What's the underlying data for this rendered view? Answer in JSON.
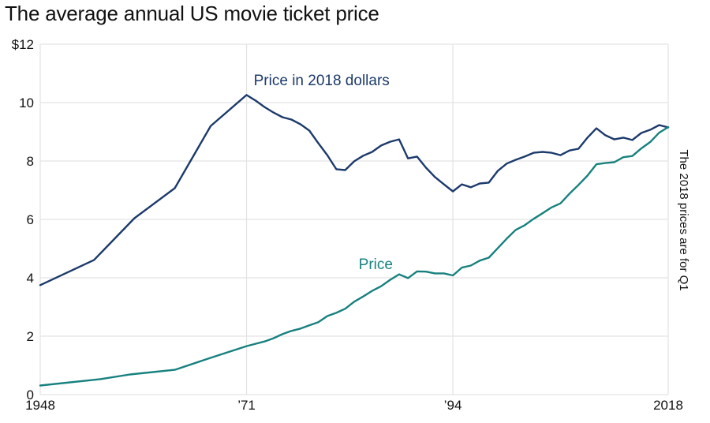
{
  "chart_data": {
    "type": "line",
    "title": "The average annual US movie ticket price",
    "xlabel": "",
    "ylabel": "",
    "xlim": [
      1948,
      2018
    ],
    "ylim": [
      0,
      12
    ],
    "grid": true,
    "y_ticks": [
      {
        "value": 0,
        "label": "0"
      },
      {
        "value": 2,
        "label": "2"
      },
      {
        "value": 4,
        "label": "4"
      },
      {
        "value": 6,
        "label": "6"
      },
      {
        "value": 8,
        "label": "8"
      },
      {
        "value": 10,
        "label": "10"
      },
      {
        "value": 12,
        "label": "$12"
      }
    ],
    "x_ticks": [
      {
        "value": 1948,
        "label": "1948"
      },
      {
        "value": 1971,
        "label": "’71"
      },
      {
        "value": 1994,
        "label": "’94"
      },
      {
        "value": 2018,
        "label": "2018"
      }
    ],
    "note": "The 2018 prices are for Q1",
    "series": [
      {
        "name": "Price in 2018 dollars",
        "color": "#1c3a6b",
        "points": [
          [
            1948,
            3.75
          ],
          [
            1954,
            4.61
          ],
          [
            1958.5,
            6.04
          ],
          [
            1963,
            7.07
          ],
          [
            1967,
            9.2
          ],
          [
            1971,
            10.26
          ],
          [
            1972,
            10.07
          ],
          [
            1973,
            9.85
          ],
          [
            1974,
            9.66
          ],
          [
            1975,
            9.5
          ],
          [
            1976,
            9.42
          ],
          [
            1977,
            9.26
          ],
          [
            1978,
            9.04
          ],
          [
            1979,
            8.61
          ],
          [
            1980,
            8.2
          ],
          [
            1981,
            7.72
          ],
          [
            1982,
            7.69
          ],
          [
            1983,
            7.99
          ],
          [
            1984,
            8.18
          ],
          [
            1985,
            8.31
          ],
          [
            1986,
            8.53
          ],
          [
            1987,
            8.66
          ],
          [
            1988,
            8.74
          ],
          [
            1989,
            8.09
          ],
          [
            1990,
            8.15
          ],
          [
            1991,
            7.77
          ],
          [
            1992,
            7.45
          ],
          [
            1993,
            7.2
          ],
          [
            1994,
            6.96
          ],
          [
            1995,
            7.2
          ],
          [
            1996,
            7.1
          ],
          [
            1997,
            7.23
          ],
          [
            1998,
            7.26
          ],
          [
            1999,
            7.66
          ],
          [
            2000,
            7.91
          ],
          [
            2001,
            8.04
          ],
          [
            2002,
            8.15
          ],
          [
            2003,
            8.28
          ],
          [
            2004,
            8.31
          ],
          [
            2005,
            8.28
          ],
          [
            2006,
            8.2
          ],
          [
            2007,
            8.36
          ],
          [
            2008,
            8.42
          ],
          [
            2009,
            8.8
          ],
          [
            2010,
            9.12
          ],
          [
            2011,
            8.88
          ],
          [
            2012,
            8.74
          ],
          [
            2013,
            8.8
          ],
          [
            2014,
            8.72
          ],
          [
            2015,
            8.96
          ],
          [
            2016,
            9.07
          ],
          [
            2017,
            9.23
          ],
          [
            2018,
            9.15
          ]
        ]
      },
      {
        "name": "Price",
        "color": "#17817f",
        "points": [
          [
            1948,
            0.31
          ],
          [
            1954.7,
            0.53
          ],
          [
            1958,
            0.69
          ],
          [
            1963,
            0.85
          ],
          [
            1967,
            1.26
          ],
          [
            1971,
            1.66
          ],
          [
            1972,
            1.74
          ],
          [
            1973,
            1.82
          ],
          [
            1974,
            1.93
          ],
          [
            1975,
            2.07
          ],
          [
            1976,
            2.18
          ],
          [
            1977,
            2.26
          ],
          [
            1978,
            2.37
          ],
          [
            1979,
            2.48
          ],
          [
            1980,
            2.69
          ],
          [
            1981,
            2.8
          ],
          [
            1982,
            2.94
          ],
          [
            1983,
            3.18
          ],
          [
            1984,
            3.36
          ],
          [
            1985,
            3.55
          ],
          [
            1986,
            3.71
          ],
          [
            1987,
            3.93
          ],
          [
            1988,
            4.12
          ],
          [
            1989,
            3.99
          ],
          [
            1990,
            4.22
          ],
          [
            1991,
            4.21
          ],
          [
            1992,
            4.15
          ],
          [
            1993,
            4.15
          ],
          [
            1994,
            4.08
          ],
          [
            1995,
            4.35
          ],
          [
            1996,
            4.42
          ],
          [
            1997,
            4.59
          ],
          [
            1998,
            4.69
          ],
          [
            1999,
            5.01
          ],
          [
            2000,
            5.34
          ],
          [
            2001,
            5.64
          ],
          [
            2002,
            5.8
          ],
          [
            2003,
            6.02
          ],
          [
            2004,
            6.21
          ],
          [
            2005,
            6.41
          ],
          [
            2006,
            6.55
          ],
          [
            2007,
            6.88
          ],
          [
            2008,
            7.18
          ],
          [
            2009,
            7.5
          ],
          [
            2010,
            7.89
          ],
          [
            2011,
            7.93
          ],
          [
            2012,
            7.96
          ],
          [
            2013,
            8.13
          ],
          [
            2014,
            8.17
          ],
          [
            2015,
            8.43
          ],
          [
            2016,
            8.65
          ],
          [
            2017,
            8.97
          ],
          [
            2018,
            9.16
          ]
        ]
      }
    ],
    "annotations": [
      {
        "text": "Price in 2018 dollars",
        "series": 0,
        "x": 1971.8,
        "y": 10.6
      },
      {
        "text": "Price",
        "series": 1,
        "x": 1983.5,
        "y": 4.3
      }
    ]
  }
}
